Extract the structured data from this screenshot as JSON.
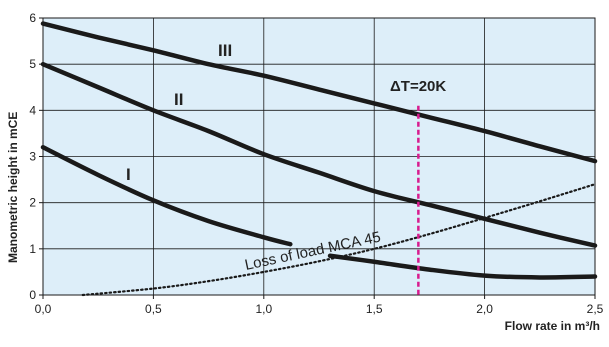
{
  "chart_data": {
    "type": "line",
    "xlabel": "Flow rate in m³/h",
    "ylabel": "Manometric height in mCE",
    "xlim": [
      0,
      2.5
    ],
    "ylim": [
      0,
      6
    ],
    "grid": true,
    "x_ticks": [
      "0,0",
      "0,5",
      "1,0",
      "1,5",
      "2,0",
      "2,5"
    ],
    "y_ticks": [
      "0",
      "1",
      "2",
      "3",
      "4",
      "5",
      "6"
    ],
    "colors": {
      "plot_bg": "#ddeef9",
      "grid": "#1a1a1a",
      "curve": "#1a1a1a",
      "marker": "#d81b8f",
      "loss_curve": "#1a1a1a"
    },
    "series": [
      {
        "name": "I",
        "points": [
          [
            0,
            3.2
          ],
          [
            0.25,
            2.6
          ],
          [
            0.5,
            2.05
          ],
          [
            0.75,
            1.6
          ],
          [
            1.0,
            1.25
          ],
          [
            1.12,
            1.1
          ]
        ]
      },
      {
        "name": "I",
        "points": [
          [
            1.3,
            0.85
          ],
          [
            1.5,
            0.72
          ],
          [
            1.75,
            0.55
          ],
          [
            2.0,
            0.42
          ],
          [
            2.25,
            0.38
          ],
          [
            2.5,
            0.4
          ]
        ]
      },
      {
        "name": "II",
        "points": [
          [
            0,
            5.0
          ],
          [
            0.25,
            4.5
          ],
          [
            0.5,
            4.0
          ],
          [
            0.75,
            3.55
          ],
          [
            1.0,
            3.05
          ],
          [
            1.25,
            2.65
          ],
          [
            1.5,
            2.25
          ],
          [
            1.75,
            1.95
          ],
          [
            2.0,
            1.65
          ],
          [
            2.25,
            1.35
          ],
          [
            2.5,
            1.07
          ]
        ]
      },
      {
        "name": "III",
        "points": [
          [
            0,
            5.88
          ],
          [
            0.25,
            5.58
          ],
          [
            0.5,
            5.3
          ],
          [
            0.75,
            5.0
          ],
          [
            1.0,
            4.75
          ],
          [
            1.25,
            4.45
          ],
          [
            1.5,
            4.15
          ],
          [
            1.75,
            3.85
          ],
          [
            2.0,
            3.55
          ],
          [
            2.25,
            3.22
          ],
          [
            2.5,
            2.9
          ]
        ]
      },
      {
        "name": "Loss of load MCA 45",
        "style": "dotted",
        "points": [
          [
            0.18,
            0.0
          ],
          [
            0.5,
            0.14
          ],
          [
            0.75,
            0.3
          ],
          [
            1.0,
            0.5
          ],
          [
            1.25,
            0.73
          ],
          [
            1.5,
            1.0
          ],
          [
            1.75,
            1.32
          ],
          [
            2.0,
            1.67
          ],
          [
            2.25,
            2.03
          ],
          [
            2.5,
            2.4
          ]
        ]
      }
    ],
    "curve_labels": [
      "I",
      "II",
      "III"
    ],
    "loss_label": "Loss of load MCA 45",
    "vertical_marker": {
      "x": 1.7,
      "label": "ΔT=20K",
      "style": "dashed"
    }
  }
}
